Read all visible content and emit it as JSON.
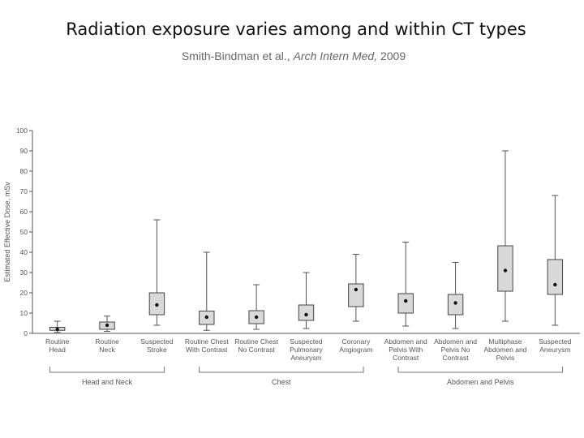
{
  "chart_data": {
    "type": "box",
    "title": "Radiation exposure varies among and within CT types",
    "source": {
      "authors": "Smith-Bindman et al.,",
      "journal": "Arch Intern Med,",
      "year": "2009"
    },
    "ylabel": "Estimated Effective Dose, mSv",
    "categories": [
      "Routine\nHead",
      "Routine\nNeck",
      "Suspected\nStroke",
      "Routine Chest\nWith Contrast",
      "Routine Chest\nNo Contrast",
      "Suspected\nPulmonary\nAneurysm",
      "Coronary\nAngiogram",
      "Abdomen and\nPelvis With\nContrast",
      "Abdomen and\nPelvis No\nContrast",
      "Multiphase\nAbdomen and\nPelvis",
      "Suspected\nAneurysm"
    ],
    "groups": [
      "Head and Neck",
      "Chest",
      "Abdomen and Pelvis"
    ],
    "boxes": [
      {
        "low": 0.5,
        "q1": 1.5,
        "median": 2,
        "q3": 3,
        "high": 6
      },
      {
        "low": 1,
        "q1": 2,
        "median": 4,
        "q3": 5.6,
        "high": 8.5
      },
      {
        "low": 4,
        "q1": 9.2,
        "median": 14,
        "q3": 20,
        "high": 56
      },
      {
        "low": 1.5,
        "q1": 4.4,
        "median": 8,
        "q3": 11,
        "high": 40
      },
      {
        "low": 2,
        "q1": 4.8,
        "median": 8,
        "q3": 11.2,
        "high": 24
      },
      {
        "low": 2.4,
        "q1": 6.4,
        "median": 9.2,
        "q3": 14,
        "high": 30
      },
      {
        "low": 6,
        "q1": 13.2,
        "median": 21.6,
        "q3": 24.4,
        "high": 39
      },
      {
        "low": 3.6,
        "q1": 10,
        "median": 16,
        "q3": 19.6,
        "high": 45
      },
      {
        "low": 2.4,
        "q1": 9.2,
        "median": 15,
        "q3": 19.2,
        "high": 35
      },
      {
        "low": 6,
        "q1": 20.8,
        "median": 31,
        "q3": 43.2,
        "high": 90
      },
      {
        "low": 4,
        "q1": 19.2,
        "median": 24,
        "q3": 36.4,
        "high": 68
      }
    ],
    "color": "#d9d9d9",
    "ylim": [
      0,
      100
    ],
    "yticks": [
      0,
      10,
      20,
      30,
      40,
      50,
      60,
      70,
      80,
      90,
      100
    ]
  }
}
